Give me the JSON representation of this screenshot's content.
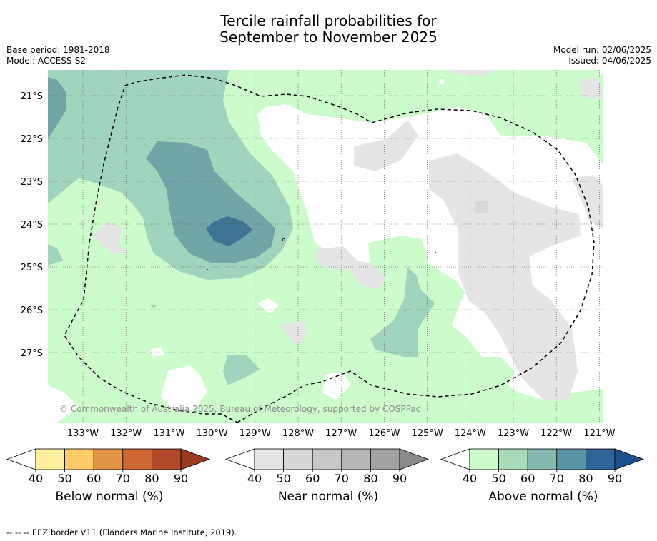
{
  "title_line1": "Tercile rainfall probabilities for",
  "title_line2": "September to November 2025",
  "meta_left": [
    "Base period: 1981-2018",
    "Model: ACCESS-S2"
  ],
  "meta_right": [
    "Model run: 02/06/2025",
    "Issued: 04/06/2025"
  ],
  "copyright": "© Commonwealth of Australia 2025, Bureau of Meteorology, supported by COSPPac",
  "lat_labels": [
    "21°S",
    "22°S",
    "23°S",
    "24°S",
    "25°S",
    "26°S",
    "27°S"
  ],
  "lon_labels": [
    "133°W",
    "132°W",
    "131°W",
    "130°W",
    "129°W",
    "128°W",
    "127°W",
    "126°W",
    "125°W",
    "124°W",
    "123°W",
    "122°W",
    "121°W"
  ],
  "colorbars": [
    {
      "label": "Below normal (%)",
      "ticks": [
        "40",
        "50",
        "60",
        "70",
        "80",
        "90"
      ],
      "colors": [
        "#fff0a0",
        "#fdcb68",
        "#e29447",
        "#cd6632",
        "#b04a28"
      ],
      "extend_color": "#9a3a22"
    },
    {
      "label": "Near normal (%)",
      "ticks": [
        "40",
        "50",
        "60",
        "70",
        "80",
        "90"
      ],
      "colors": [
        "#e5e5e5",
        "#d8d8d8",
        "#c8c8c8",
        "#b6b6b6",
        "#a2a2a2"
      ],
      "extend_color": "#8a8a8a"
    },
    {
      "label": "Above normal (%)",
      "ticks": [
        "40",
        "50",
        "60",
        "70",
        "80",
        "90"
      ],
      "colors": [
        "#ccfccc",
        "#a9dbb8",
        "#85b9b0",
        "#5a95a5",
        "#2e6596"
      ],
      "extend_color": "#1b4f8e"
    }
  ],
  "footer": "--  --  -- EEZ border V11 (Flanders Marine Institute, 2019).",
  "map_colors": {
    "above_40": "#ccfccc",
    "above_50": "#a0d4bc",
    "above_60": "#72a5a8",
    "above_70": "#3e7394",
    "near_40": "#e5e5e5"
  }
}
